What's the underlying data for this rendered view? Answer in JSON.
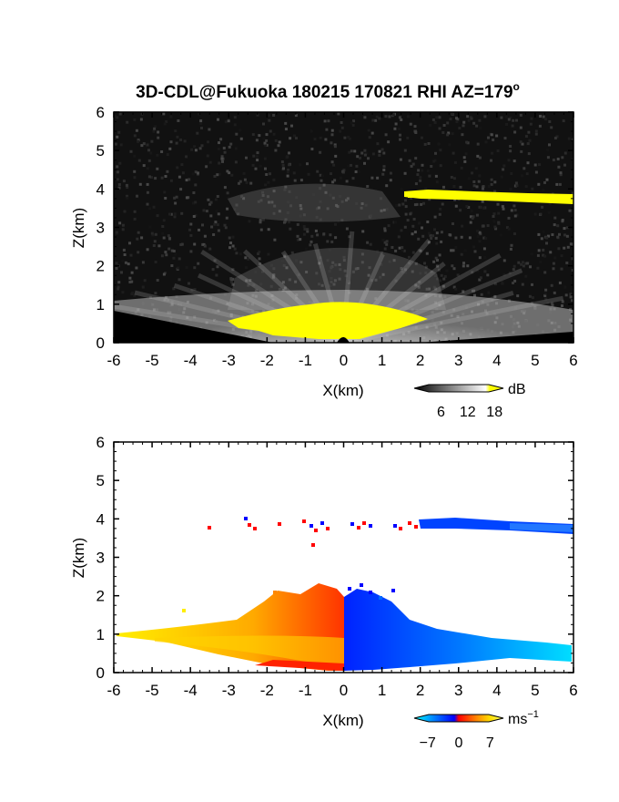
{
  "title": "3D-CDL@Fukuoka 180215 170821 RHI AZ=179",
  "title_sup": "o",
  "chart_data": [
    {
      "type": "heatmap",
      "variable": "reflectivity",
      "xlabel": "X(km)",
      "ylabel": "Z(km)",
      "xlim": [
        -6,
        6
      ],
      "ylim": [
        0,
        6
      ],
      "xticks": [
        "-6",
        "-5",
        "-4",
        "-3",
        "-2",
        "-1",
        "0",
        "1",
        "2",
        "3",
        "4",
        "5",
        "6"
      ],
      "yticks": [
        "0",
        "1",
        "2",
        "3",
        "4",
        "5",
        "6"
      ],
      "colorbar": {
        "unit": "dB",
        "ticks": [
          "6",
          "12",
          "18"
        ],
        "tick_values": [
          6,
          12,
          18
        ],
        "range": [
          0,
          20
        ],
        "colors": [
          "#000000",
          "#ffffff",
          "#ffff00"
        ]
      },
      "features": [
        {
          "label": "surface echo",
          "x_range": [
            -6,
            6
          ],
          "z_range": [
            0,
            1.05
          ]
        },
        {
          "label": "elevated layer",
          "x_range": [
            -3,
            2
          ],
          "z_range": [
            3.7,
            4.2
          ]
        },
        {
          "label": "strong layer (yellow)",
          "x_range": [
            1.6,
            6
          ],
          "z_range": [
            3.7,
            3.95
          ]
        },
        {
          "label": "strong near-surface core (yellow)",
          "x_range": [
            -3,
            2
          ],
          "z_range": [
            0,
            0.9
          ]
        }
      ]
    },
    {
      "type": "heatmap",
      "variable": "doppler velocity",
      "xlabel": "X(km)",
      "ylabel": "Z(km)",
      "xlim": [
        -6,
        6
      ],
      "ylim": [
        0,
        6
      ],
      "xticks": [
        "-6",
        "-5",
        "-4",
        "-3",
        "-2",
        "-1",
        "0",
        "1",
        "2",
        "3",
        "4",
        "5",
        "6"
      ],
      "yticks": [
        "0",
        "1",
        "2",
        "3",
        "4",
        "5",
        "6"
      ],
      "colorbar": {
        "unit": "ms",
        "unit_sup": "−1",
        "ticks": [
          "−7",
          "0",
          "7"
        ],
        "tick_values": [
          -7,
          0,
          7
        ],
        "range": [
          -10,
          10
        ],
        "colors": [
          "#00ffff",
          "#0000ff",
          "#ff0000",
          "#ffff00"
        ]
      },
      "features": [
        {
          "label": "receding (warm) side",
          "x_range": [
            -6,
            0
          ],
          "z_range": [
            0,
            2.2
          ]
        },
        {
          "label": "approaching (cool) side",
          "x_range": [
            0,
            6
          ],
          "z_range": [
            0,
            2.1
          ]
        },
        {
          "label": "upper layer",
          "x_range": [
            1.6,
            6
          ],
          "z_range": [
            3.65,
            4.0
          ]
        }
      ]
    }
  ]
}
